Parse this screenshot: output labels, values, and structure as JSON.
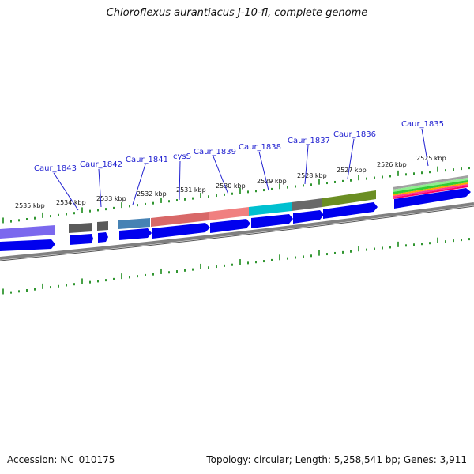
{
  "title": "Chloroflexus aurantiacus J-10-fl, complete genome",
  "accession": "Accession: NC_010175",
  "summary": "Topology: circular; Length: 5,258,541 bp; Genes: 3,911",
  "kbp_labels": [
    "2535 kbp",
    "2534 kbp",
    "2533 kbp",
    "2532 kbp",
    "2531 kbp",
    "2530 kbp",
    "2529 kbp",
    "2528 kbp",
    "2527 kbp",
    "2526 kbp",
    "2525 kbp"
  ],
  "gene_labels": [
    "Caur_1843",
    "Caur_1842",
    "Caur_1841",
    "cysS",
    "Caur_1839",
    "Caur_1838",
    "Caur_1837",
    "Caur_1836",
    "Caur_1835"
  ],
  "colors": {
    "backbone": "#808080",
    "gene_arrow": "#0000ee",
    "ticks": "#1a8a1a",
    "label": "#1f1fd0",
    "feature_bars": [
      "#7b68ee",
      "#5a5a5a",
      "#5a5a5a",
      "#4682b4",
      "#e06060",
      "#f08080",
      "#00bcd4",
      "#696969",
      "#6b8e23"
    ],
    "stack_colors": [
      "#a0a0a0",
      "#90ee90",
      "#32cd32",
      "#ffa500",
      "#ff3399",
      "#ff0066"
    ]
  }
}
